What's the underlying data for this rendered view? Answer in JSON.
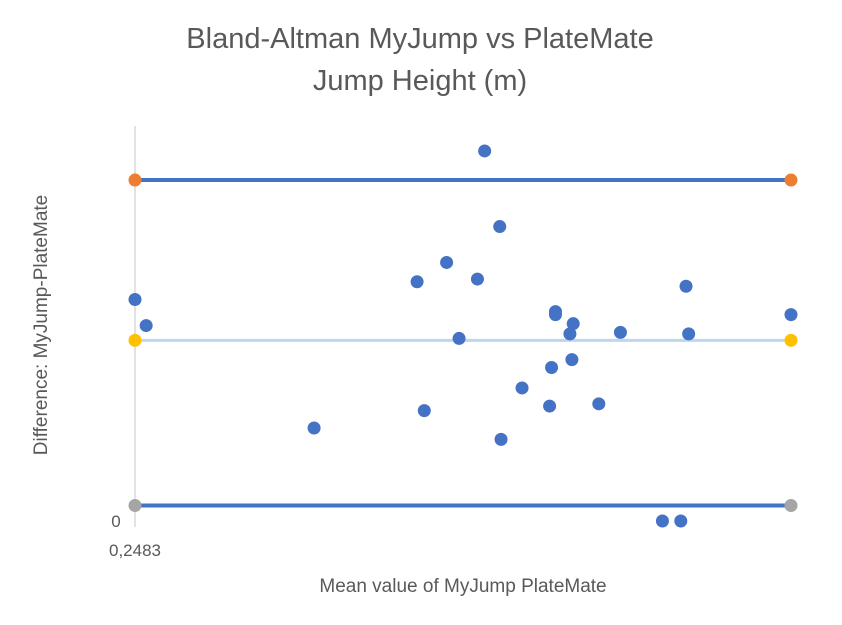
{
  "chart_data": {
    "type": "scatter",
    "title": [
      "Bland-Altman MyJump vs PlateMate",
      "Jump Height (m)"
    ],
    "xlabel": "Mean value of MyJump  PlateMate",
    "ylabel": "Difference: MyJump-PlateMate",
    "x_tick_label": "0,2483",
    "y_tick_label": "0",
    "xlim": [
      0,
      100
    ],
    "ylim": [
      0,
      100
    ],
    "grid": false,
    "legend": "none",
    "colors": {
      "points": "#4472C4",
      "loa_line": "#4472C4",
      "mean_line": "#BDD7EE",
      "upper_marker": "#ED7D31",
      "mean_marker": "#FFC000",
      "lower_marker": "#A5A5A5",
      "axis": "#D9D9D9",
      "text": "#595959"
    },
    "reference_lines": [
      {
        "name": "upper limit of agreement",
        "y": 90.2
      },
      {
        "name": "mean difference",
        "y": 47.8
      },
      {
        "name": "lower limit of agreement",
        "y": 4.1
      }
    ],
    "series": [
      {
        "values": [
          {
            "x": 0.0,
            "y": 58.6
          },
          {
            "x": 1.7,
            "y": 51.7
          },
          {
            "x": 27.3,
            "y": 24.6
          },
          {
            "x": 43.0,
            "y": 63.3
          },
          {
            "x": 44.1,
            "y": 29.2
          },
          {
            "x": 47.5,
            "y": 68.4
          },
          {
            "x": 49.4,
            "y": 48.3
          },
          {
            "x": 52.2,
            "y": 64.0
          },
          {
            "x": 53.3,
            "y": 97.9
          },
          {
            "x": 55.6,
            "y": 77.9
          },
          {
            "x": 55.8,
            "y": 21.6
          },
          {
            "x": 59.0,
            "y": 35.2
          },
          {
            "x": 63.2,
            "y": 30.4
          },
          {
            "x": 63.5,
            "y": 40.6
          },
          {
            "x": 64.1,
            "y": 55.4
          },
          {
            "x": 64.1,
            "y": 54.6
          },
          {
            "x": 66.3,
            "y": 49.5
          },
          {
            "x": 66.6,
            "y": 42.7
          },
          {
            "x": 66.8,
            "y": 52.2
          },
          {
            "x": 70.7,
            "y": 31.0
          },
          {
            "x": 74.0,
            "y": 49.9
          },
          {
            "x": 80.4,
            "y": 0.0
          },
          {
            "x": 83.2,
            "y": 0.0
          },
          {
            "x": 84.0,
            "y": 62.1
          },
          {
            "x": 84.4,
            "y": 49.5
          },
          {
            "x": 100.0,
            "y": 54.6
          }
        ]
      }
    ]
  }
}
